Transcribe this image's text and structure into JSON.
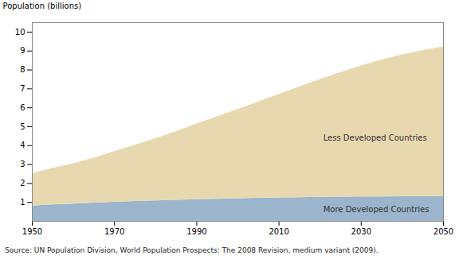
{
  "chart_data": {
    "type": "area",
    "stacked": true,
    "x": [
      1950,
      1955,
      1960,
      1965,
      1970,
      1975,
      1980,
      1985,
      1990,
      1995,
      2000,
      2005,
      2010,
      2015,
      2020,
      2025,
      2030,
      2035,
      2040,
      2045,
      2050
    ],
    "series": [
      {
        "name": "More Developed Countries",
        "color": "#9ab5cc",
        "values": [
          0.813,
          0.869,
          0.916,
          0.964,
          1.008,
          1.047,
          1.083,
          1.114,
          1.143,
          1.169,
          1.194,
          1.216,
          1.237,
          1.254,
          1.268,
          1.28,
          1.289,
          1.295,
          1.298,
          1.299,
          1.299
        ]
      },
      {
        "name": "Less Developed Countries",
        "color": "#e8d8b0",
        "values": [
          1.707,
          1.931,
          2.133,
          2.377,
          2.674,
          2.973,
          3.281,
          3.626,
          4.006,
          4.362,
          4.72,
          5.086,
          5.47,
          5.858,
          6.233,
          6.589,
          6.924,
          7.228,
          7.496,
          7.727,
          7.92
        ]
      }
    ],
    "ylabel": "Population (billions)",
    "xlim": [
      1950,
      2050
    ],
    "xticks": [
      1950,
      1970,
      1990,
      2010,
      2030,
      2050
    ],
    "ylim": [
      0,
      10.5
    ],
    "yticks": [
      1,
      2,
      3,
      4,
      5,
      6,
      7,
      8,
      9,
      10
    ],
    "grid": false,
    "caption": "Source: UN Population Division, World Population Prospects: The 2008 Revision, medium variant (2009)."
  }
}
